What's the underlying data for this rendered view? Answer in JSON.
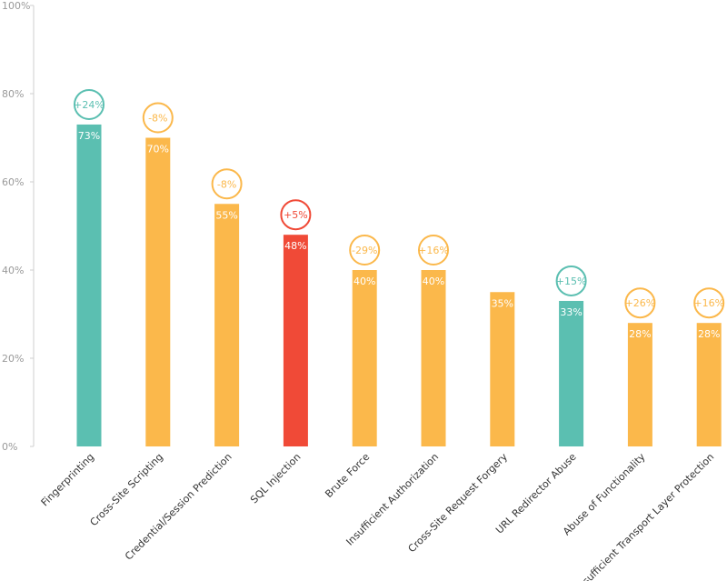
{
  "chart_data": {
    "type": "bar",
    "title": "",
    "xlabel": "",
    "ylabel": "",
    "ylim": [
      0,
      100
    ],
    "yticks": [
      "0%",
      "20%",
      "40%",
      "60%",
      "80%",
      "100%"
    ],
    "categories": [
      "Fingerprinting",
      "Cross-Site Scripting",
      "Credential/Session Prediction",
      "SQL Injection",
      "Brute Force",
      "Insufficient Authorization",
      "Cross-Site Request Forgery",
      "URL Redirector Abuse",
      "Abuse of Functionality",
      "Insufficient Transport Layer Protection"
    ],
    "values": [
      73,
      70,
      55,
      48,
      40,
      40,
      35,
      33,
      28,
      28
    ],
    "value_labels": [
      "73%",
      "70%",
      "55%",
      "48%",
      "40%",
      "40%",
      "35%",
      "33%",
      "28%",
      "28%"
    ],
    "change_labels": [
      "+24%",
      "-8%",
      "-8%",
      "+5%",
      "-29%",
      "+16%",
      "",
      "+15%",
      "+26%",
      "+16%"
    ],
    "bar_colors": [
      "#5bbfb1",
      "#fbb84b",
      "#fbb84b",
      "#f04a37",
      "#fbb84b",
      "#fbb84b",
      "#fbb84b",
      "#5bbfb1",
      "#fbb84b",
      "#fbb84b"
    ],
    "grid": false
  }
}
